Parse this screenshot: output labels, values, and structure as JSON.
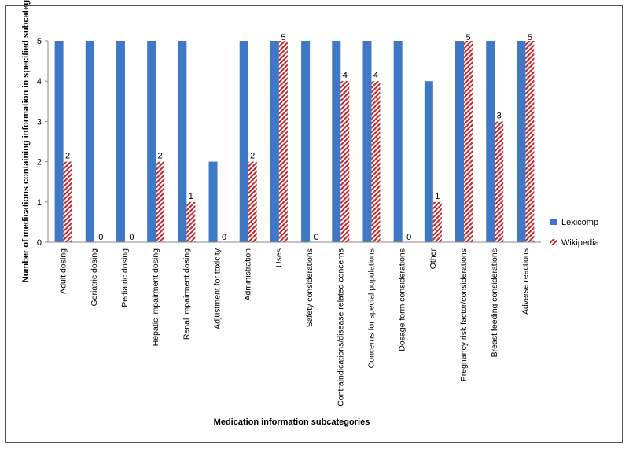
{
  "chart_data": {
    "type": "bar",
    "title": "",
    "xlabel": "Medication information subcategories",
    "ylabel": "Number of medications containing information in specified subcategory",
    "ylim": [
      0,
      5
    ],
    "yticks": [
      0,
      1,
      2,
      3,
      4,
      5
    ],
    "grid": false,
    "legend_position": "right",
    "categories": [
      "Adult dosing",
      "Geriatric dosing",
      "Pediatric dosing",
      "Hepatic impairment dosing",
      "Renal impairment dosing",
      "Adjustment for toxicity",
      "Administration",
      "Uses",
      "Safety considerations",
      "Contraindications/disease related concerns",
      "Concerns for special populations",
      "Dosage form considerations",
      "Other",
      "Pregnancy risk factor/considerations",
      "Breast feeding considerations",
      "Adverse reactions"
    ],
    "series": [
      {
        "name": "Lexicomp",
        "color": "#3f78c4",
        "pattern": "solid",
        "show_labels": false,
        "values": [
          5,
          5,
          5,
          5,
          5,
          2,
          5,
          5,
          5,
          5,
          5,
          5,
          4,
          5,
          5,
          5
        ]
      },
      {
        "name": "Wikipedia",
        "color": "#c0282e",
        "pattern": "diagonal-hatch",
        "show_labels": true,
        "values": [
          2,
          0,
          0,
          2,
          1,
          0,
          2,
          5,
          0,
          4,
          4,
          0,
          1,
          5,
          3,
          5
        ]
      }
    ]
  }
}
